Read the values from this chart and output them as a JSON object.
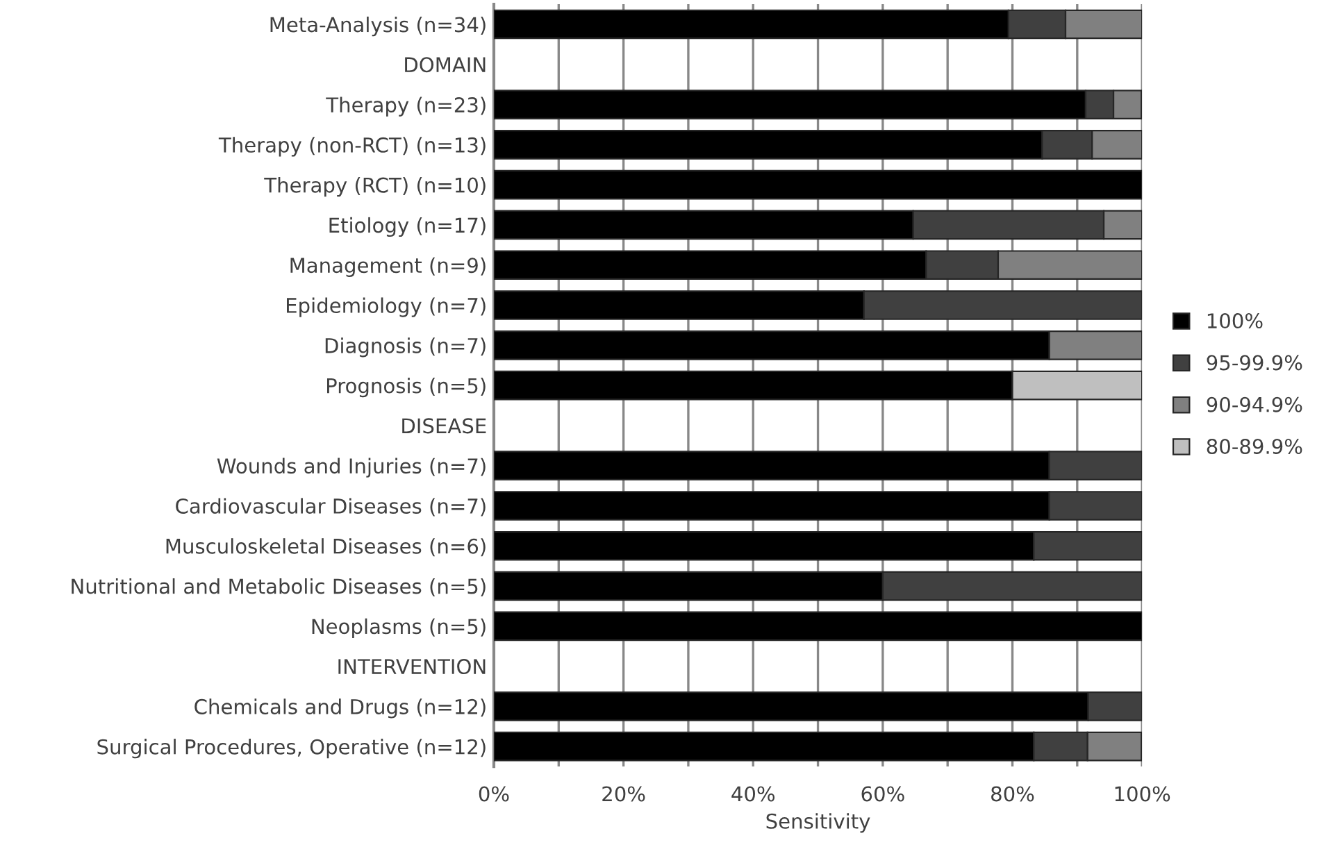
{
  "chart_data": {
    "type": "bar",
    "orientation": "horizontal",
    "stacked": true,
    "xlabel": "Sensitivity",
    "categories": [
      "Meta-Analysis (n=34)",
      "DOMAIN",
      "Therapy (n=23)",
      "Therapy (non-RCT) (n=13)",
      "Therapy (RCT) (n=10)",
      "Etiology (n=17)",
      "Management (n=9)",
      "Epidemiology (n=7)",
      "Diagnosis (n=7)",
      "Prognosis (n=5)",
      "DISEASE",
      "Wounds and Injuries (n=7)",
      "Cardiovascular Diseases (n=7)",
      "Musculoskeletal Diseases (n=6)",
      "Nutritional and Metabolic Diseases (n=5)",
      "Neoplasms (n=5)",
      "INTERVENTION",
      "Chemicals and Drugs (n=12)",
      "Surgical Procedures, Operative (n=12)"
    ],
    "series": [
      {
        "name": "100%",
        "color": "#000000",
        "values": [
          79.4,
          null,
          91.3,
          84.6,
          100,
          64.7,
          66.7,
          57.1,
          85.7,
          80,
          null,
          85.7,
          85.7,
          83.3,
          60,
          100,
          null,
          91.7,
          83.3
        ]
      },
      {
        "name": "95-99.9%",
        "color": "#404040",
        "values": [
          8.8,
          null,
          4.3,
          7.7,
          null,
          29.4,
          11.1,
          42.9,
          null,
          null,
          null,
          14.3,
          14.3,
          16.7,
          40,
          null,
          null,
          8.3,
          8.3
        ]
      },
      {
        "name": "90-94.9%",
        "color": "#808080",
        "values": [
          11.8,
          null,
          4.3,
          7.7,
          null,
          5.9,
          22.2,
          null,
          14.3,
          null,
          null,
          null,
          null,
          null,
          null,
          null,
          null,
          null,
          8.3
        ]
      },
      {
        "name": "80-89.9%",
        "color": "#bfbfbf",
        "values": [
          null,
          null,
          null,
          null,
          null,
          null,
          null,
          null,
          null,
          20,
          null,
          null,
          null,
          null,
          null,
          null,
          null,
          null,
          null
        ]
      }
    ],
    "xlim": [
      0,
      100
    ],
    "xticks": [
      {
        "value": 0,
        "label": "0%"
      },
      {
        "value": 10,
        "label": null
      },
      {
        "value": 20,
        "label": "20%"
      },
      {
        "value": 30,
        "label": null
      },
      {
        "value": 40,
        "label": "40%"
      },
      {
        "value": 50,
        "label": null
      },
      {
        "value": 60,
        "label": "60%"
      },
      {
        "value": 70,
        "label": null
      },
      {
        "value": 80,
        "label": "80%"
      },
      {
        "value": 90,
        "label": null
      },
      {
        "value": 100,
        "label": "100%"
      }
    ],
    "grid": "x",
    "legend": "right"
  }
}
